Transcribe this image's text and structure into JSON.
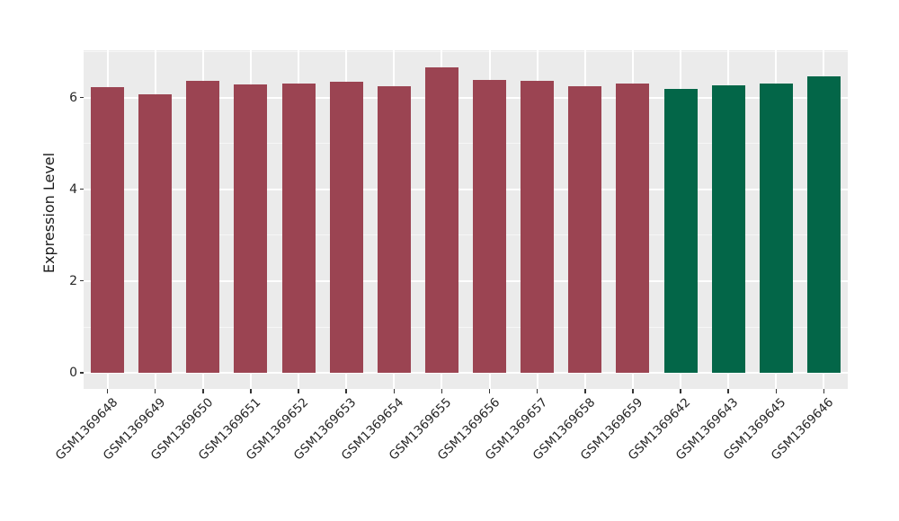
{
  "figure": {
    "background": "#ffffff"
  },
  "chart_data": {
    "type": "bar",
    "title": "",
    "xlabel": "",
    "ylabel": "Expression Level",
    "categories": [
      "GSM1369648",
      "GSM1369649",
      "GSM1369650",
      "GSM1369651",
      "GSM1369652",
      "GSM1369653",
      "GSM1369654",
      "GSM1369655",
      "GSM1369656",
      "GSM1369657",
      "GSM1369658",
      "GSM1369659",
      "GSM1369642",
      "GSM1369643",
      "GSM1369645",
      "GSM1369646"
    ],
    "values": [
      6.22,
      6.08,
      6.36,
      6.28,
      6.31,
      6.35,
      6.25,
      6.65,
      6.38,
      6.36,
      6.25,
      6.3,
      6.18,
      6.27,
      6.3,
      6.46
    ],
    "bar_colors": [
      "#9B4452",
      "#9B4452",
      "#9B4452",
      "#9B4452",
      "#9B4452",
      "#9B4452",
      "#9B4452",
      "#9B4452",
      "#9B4452",
      "#9B4452",
      "#9B4452",
      "#9B4452",
      "#036648",
      "#036648",
      "#036648",
      "#036648"
    ],
    "palette": {
      "maroon": "#9B4452",
      "green": "#036648"
    },
    "yticks": [
      0,
      2,
      4,
      6
    ],
    "minor_yticks": [
      1,
      3,
      5,
      7
    ],
    "ylim": [
      -0.35,
      7.03
    ],
    "grid": "on",
    "legend": "none",
    "panel_background": "#EBEBEB",
    "gridline_major_color": "#FFFFFF",
    "tick_color": "#333333"
  }
}
